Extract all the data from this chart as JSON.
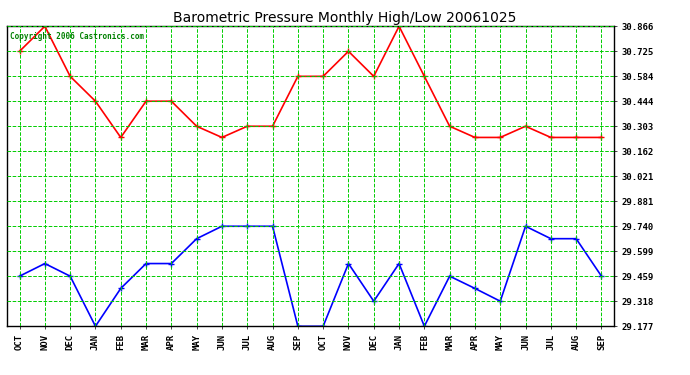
{
  "title": "Barometric Pressure Monthly High/Low 20061025",
  "copyright": "Copyright 2006 Castronics.com",
  "x_labels": [
    "OCT",
    "NOV",
    "DEC",
    "JAN",
    "FEB",
    "MAR",
    "APR",
    "MAY",
    "JUN",
    "JUL",
    "AUG",
    "SEP",
    "OCT",
    "NOV",
    "DEC",
    "JAN",
    "FEB",
    "MAR",
    "APR",
    "MAY",
    "JUN",
    "JUL",
    "AUG",
    "SEP"
  ],
  "y_ticks": [
    29.177,
    29.318,
    29.459,
    29.599,
    29.74,
    29.881,
    30.021,
    30.162,
    30.303,
    30.444,
    30.584,
    30.725,
    30.866
  ],
  "ylim": [
    29.177,
    30.866
  ],
  "high_values": [
    30.725,
    30.866,
    30.584,
    30.444,
    30.24,
    30.444,
    30.444,
    30.303,
    30.24,
    30.303,
    30.303,
    30.584,
    30.584,
    30.725,
    30.584,
    30.866,
    30.584,
    30.303,
    30.24,
    30.24,
    30.303,
    30.24,
    30.24,
    30.24
  ],
  "low_values": [
    29.459,
    29.53,
    29.459,
    29.177,
    29.39,
    29.53,
    29.53,
    29.67,
    29.74,
    29.74,
    29.74,
    29.177,
    29.177,
    29.53,
    29.318,
    29.53,
    29.177,
    29.459,
    29.39,
    29.318,
    29.74,
    29.67,
    29.67,
    29.459
  ],
  "high_color": "#ff0000",
  "low_color": "#0000ff",
  "bg_color": "#ffffff",
  "grid_color": "#00cc00",
  "title_color": "#000000",
  "copyright_color": "#008000",
  "marker": "+",
  "marker_size": 5,
  "line_width": 1.2
}
